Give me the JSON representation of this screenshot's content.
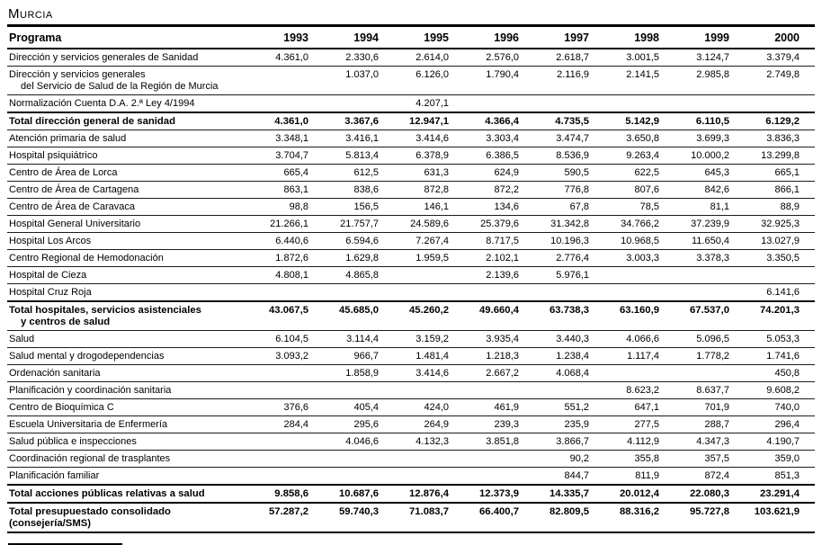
{
  "title": "Murcia",
  "table": {
    "columns": [
      "Programa",
      "1993",
      "1994",
      "1995",
      "1996",
      "1997",
      "1998",
      "1999",
      "2000"
    ],
    "rows": [
      {
        "label": "Dirección y servicios generales de Sanidad",
        "label2": null,
        "bold": false,
        "values": [
          "4.361,0",
          "2.330,6",
          "2.614,0",
          "2.576,0",
          "2.618,7",
          "3.001,5",
          "3.124,7",
          "3.379,4"
        ]
      },
      {
        "label": "Dirección y servicios generales",
        "label2": "del Servicio de Salud de la Región de Murcia",
        "bold": false,
        "values": [
          "",
          "1.037,0",
          "6.126,0",
          "1.790,4",
          "2.116,9",
          "2.141,5",
          "2.985,8",
          "2.749,8"
        ]
      },
      {
        "label": "Normalización Cuenta D.A. 2.ª Ley 4/1994",
        "label2": null,
        "bold": false,
        "values": [
          "",
          "",
          "4.207,1",
          "",
          "",
          "",
          "",
          ""
        ]
      },
      {
        "label": "Total dirección general de sanidad",
        "label2": null,
        "bold": true,
        "values": [
          "4.361,0",
          "3.367,6",
          "12.947,1",
          "4.366,4",
          "4.735,5",
          "5.142,9",
          "6.110,5",
          "6.129,2"
        ]
      },
      {
        "label": "Atención primaria de salud",
        "label2": null,
        "bold": false,
        "values": [
          "3.348,1",
          "3.416,1",
          "3.414,6",
          "3.303,4",
          "3.474,7",
          "3.650,8",
          "3.699,3",
          "3.836,3"
        ]
      },
      {
        "label": "Hospital psiquiátrico",
        "label2": null,
        "bold": false,
        "values": [
          "3.704,7",
          "5.813,4",
          "6.378,9",
          "6.386,5",
          "8.536,9",
          "9.263,4",
          "10.000,2",
          "13.299,8"
        ]
      },
      {
        "label": "Centro de Área de Lorca",
        "label2": null,
        "bold": false,
        "values": [
          "665,4",
          "612,5",
          "631,3",
          "624,9",
          "590,5",
          "622,5",
          "645,3",
          "665,1"
        ]
      },
      {
        "label": "Centro de Área de Cartagena",
        "label2": null,
        "bold": false,
        "values": [
          "863,1",
          "838,6",
          "872,8",
          "872,2",
          "776,8",
          "807,6",
          "842,6",
          "866,1"
        ]
      },
      {
        "label": "Centro de Área de Caravaca",
        "label2": null,
        "bold": false,
        "values": [
          "98,8",
          "156,5",
          "146,1",
          "134,6",
          "67,8",
          "78,5",
          "81,1",
          "88,9"
        ]
      },
      {
        "label": "Hospital General Universitario",
        "label2": null,
        "bold": false,
        "values": [
          "21.266,1",
          "21.757,7",
          "24.589,6",
          "25.379,6",
          "31.342,8",
          "34.766,2",
          "37.239,9",
          "32.925,3"
        ]
      },
      {
        "label": "Hospital Los Arcos",
        "label2": null,
        "bold": false,
        "values": [
          "6.440,6",
          "6.594,6",
          "7.267,4",
          "8.717,5",
          "10.196,3",
          "10.968,5",
          "11.650,4",
          "13.027,9"
        ]
      },
      {
        "label": "Centro Regional de Hemodonación",
        "label2": null,
        "bold": false,
        "values": [
          "1.872,6",
          "1.629,8",
          "1.959,5",
          "2.102,1",
          "2.776,4",
          "3.003,3",
          "3.378,3",
          "3.350,5"
        ]
      },
      {
        "label": "Hospital de Cieza",
        "label2": null,
        "bold": false,
        "values": [
          "4.808,1",
          "4.865,8",
          "",
          "2.139,6",
          "5.976,1",
          "",
          "",
          ""
        ]
      },
      {
        "label": "Hospital Cruz Roja",
        "label2": null,
        "bold": false,
        "values": [
          "",
          "",
          "",
          "",
          "",
          "",
          "",
          "6.141,6"
        ]
      },
      {
        "label": "Total hospitales, servicios asistenciales",
        "label2": "y centros de salud",
        "bold": true,
        "values": [
          "43.067,5",
          "45.685,0",
          "45.260,2",
          "49.660,4",
          "63.738,3",
          "63.160,9",
          "67.537,0",
          "74.201,3"
        ]
      },
      {
        "label": "Salud",
        "label2": null,
        "bold": false,
        "values": [
          "6.104,5",
          "3.114,4",
          "3.159,2",
          "3.935,4",
          "3.440,3",
          "4.066,6",
          "5.096,5",
          "5.053,3"
        ]
      },
      {
        "label": "Salud mental y drogodependencias",
        "label2": null,
        "bold": false,
        "values": [
          "3.093,2",
          "966,7",
          "1.481,4",
          "1.218,3",
          "1.238,4",
          "1.117,4",
          "1.778,2",
          "1.741,6"
        ]
      },
      {
        "label": "Ordenación sanitaria",
        "label2": null,
        "bold": false,
        "values": [
          "",
          "1.858,9",
          "3.414,6",
          "2.667,2",
          "4.068,4",
          "",
          "",
          "450,8"
        ]
      },
      {
        "label": "Planificación y coordinación sanitaria",
        "label2": null,
        "bold": false,
        "values": [
          "",
          "",
          "",
          "",
          "",
          "8.623,2",
          "8.637,7",
          "9.608,2"
        ]
      },
      {
        "label": "Centro de Bioquímica C",
        "label2": null,
        "bold": false,
        "values": [
          "376,6",
          "405,4",
          "424,0",
          "461,9",
          "551,2",
          "647,1",
          "701,9",
          "740,0"
        ]
      },
      {
        "label": "Escuela Universitaria de Enfermería",
        "label2": null,
        "bold": false,
        "values": [
          "284,4",
          "295,6",
          "264,9",
          "239,3",
          "235,9",
          "277,5",
          "288,7",
          "296,4"
        ]
      },
      {
        "label": "Salud pública e inspecciones",
        "label2": null,
        "bold": false,
        "values": [
          "",
          "4.046,6",
          "4.132,3",
          "3.851,8",
          "3.866,7",
          "4.112,9",
          "4.347,3",
          "4.190,7"
        ]
      },
      {
        "label": "Coordinación regional de trasplantes",
        "label2": null,
        "bold": false,
        "values": [
          "",
          "",
          "",
          "",
          "90,2",
          "355,8",
          "357,5",
          "359,0"
        ]
      },
      {
        "label": "Planificación familiar",
        "label2": null,
        "bold": false,
        "values": [
          "",
          "",
          "",
          "",
          "844,7",
          "811,9",
          "872,4",
          "851,3"
        ]
      },
      {
        "label": "Total acciones públicas relativas a salud",
        "label2": null,
        "bold": true,
        "values": [
          "9.858,6",
          "10.687,6",
          "12.876,4",
          "12.373,9",
          "14.335,7",
          "20.012,4",
          "22.080,3",
          "23.291,4"
        ]
      },
      {
        "label": "Total presupuestado consolidado (consejería/SMS)",
        "label2": null,
        "bold": true,
        "values": [
          "57.287,2",
          "59.740,3",
          "71.083,7",
          "66.400,7",
          "82.809,5",
          "88.316,2",
          "95.727,8",
          "103.621,9"
        ]
      }
    ]
  }
}
